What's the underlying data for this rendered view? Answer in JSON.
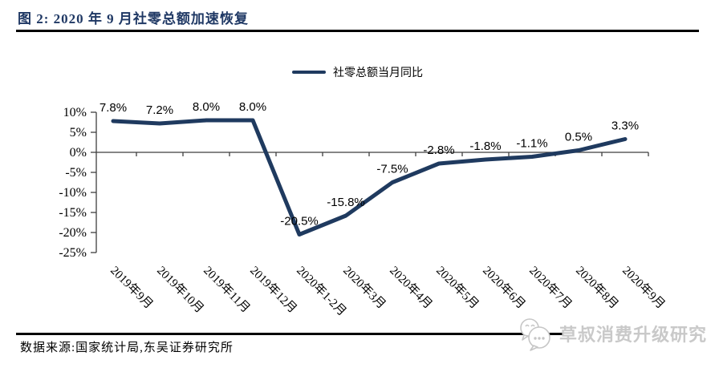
{
  "header": {
    "title": "图 2: 2020 年 9 月社零总额加速恢复"
  },
  "legend": {
    "label": "社零总额当月同比"
  },
  "footer": {
    "source": "数据来源:国家统计局,东吴证券研究所",
    "watermark": "草叔消费升级研究",
    "watermark_icon": "chat-bubbles-icon"
  },
  "colors": {
    "title_navy": "#1f3864",
    "series_line": "#1f3a5f",
    "axis": "#3f3f3f",
    "label_text": "#000000",
    "watermark_gray": "#c9c9c9",
    "rule_black": "#000000"
  },
  "chart_data": {
    "type": "line",
    "title": "图 2: 2020 年 9 月社零总额加速恢复",
    "categories": [
      "2019年9月",
      "2019年10月",
      "2019年11月",
      "2019年12月",
      "2020年1-2月",
      "2020年3月",
      "2020年4月",
      "2020年5月",
      "2020年6月",
      "2020年7月",
      "2020年8月",
      "2020年9月"
    ],
    "series": [
      {
        "name": "社零总额当月同比",
        "values": [
          7.8,
          7.2,
          8.0,
          8.0,
          -20.5,
          -15.8,
          -7.5,
          -2.8,
          -1.8,
          -1.1,
          0.5,
          3.3
        ]
      }
    ],
    "data_labels": [
      "7.8%",
      "7.2%",
      "8.0%",
      "8.0%",
      "-20.5%",
      "-15.8%",
      "-7.5%",
      "-2.8%",
      "-1.8%",
      "-1.1%",
      "0.5%",
      "3.3%"
    ],
    "y_ticks": [
      "10%",
      "5%",
      "0%",
      "-5%",
      "-10%",
      "-15%",
      "-20%",
      "-25%"
    ],
    "ylim": [
      -25,
      10
    ],
    "xlabel": "",
    "ylabel": "",
    "grid": false,
    "legend_position": "top",
    "x_label_rotation_deg": 45
  }
}
